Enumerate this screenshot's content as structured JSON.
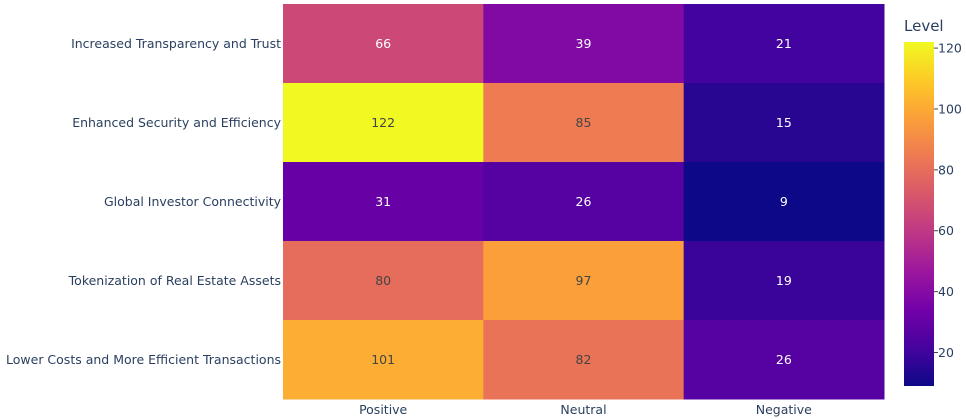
{
  "chart_data": {
    "type": "heatmap",
    "title": "",
    "xlabel": "",
    "ylabel": "",
    "x_categories": [
      "Positive",
      "Neutral",
      "Negative"
    ],
    "y_categories": [
      "Increased Transparency and Trust",
      "Enhanced Security and Efficiency",
      "Global Investor Connectivity",
      "Tokenization of Real Estate Assets",
      "Lower Costs and More Efficient Transactions"
    ],
    "values": [
      [
        66,
        39,
        21
      ],
      [
        122,
        85,
        15
      ],
      [
        31,
        26,
        9
      ],
      [
        80,
        97,
        19
      ],
      [
        101,
        82,
        26
      ]
    ],
    "colorscale": "plasma",
    "zmin": 9,
    "zmax": 122,
    "colorbar": {
      "title": "Level",
      "ticks": [
        20,
        40,
        60,
        80,
        100,
        120
      ]
    }
  }
}
